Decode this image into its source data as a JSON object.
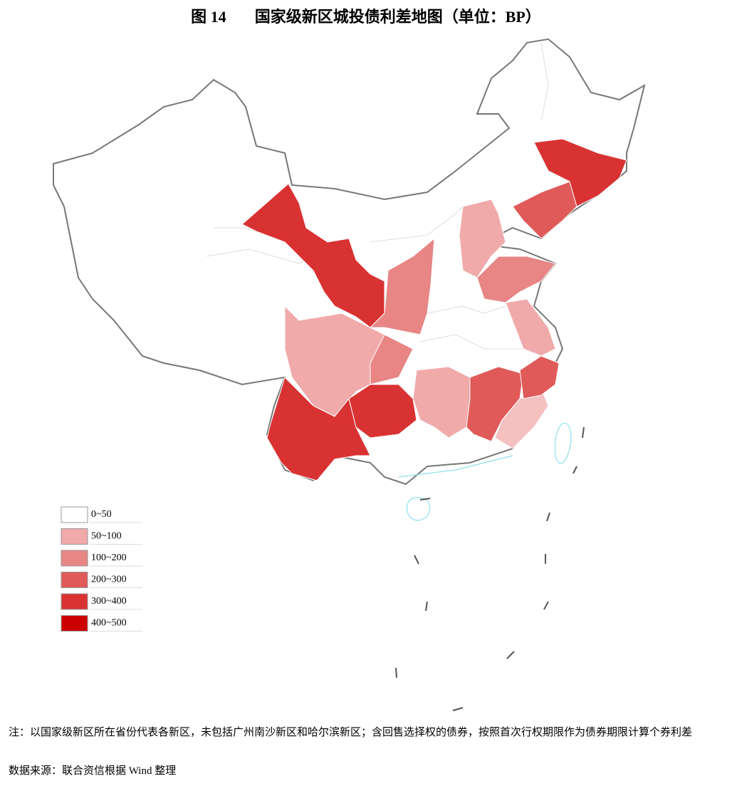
{
  "figure_label": "图 14",
  "title": "国家级新区城投债利差地图（单位：BP）",
  "legend": [
    {
      "label": "0~50",
      "color": "#ffffff"
    },
    {
      "label": "50~100",
      "color": "#f0aaaa"
    },
    {
      "label": "100~200",
      "color": "#e88585"
    },
    {
      "label": "200~300",
      "color": "#e05a5a"
    },
    {
      "label": "300~400",
      "color": "#d93232"
    },
    {
      "label": "400~500",
      "color": "#cc0000"
    }
  ],
  "note": "注：以国家级新区所在省份代表各新区，未包括广州南沙新区和哈尔滨新区；含回售选择权的债券，按照首次行权期限作为债券期限计算个券利差",
  "source": "数据来源：联合资信根据 Wind 整理"
}
